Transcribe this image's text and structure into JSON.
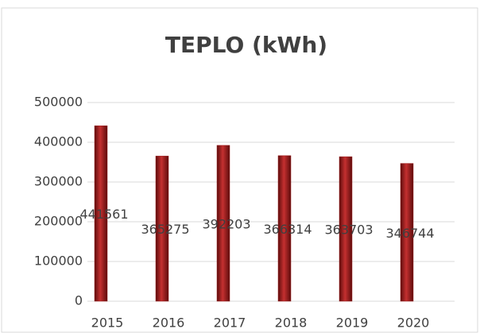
{
  "chart_data": {
    "type": "bar",
    "title": "TEPLO (kWh)",
    "categories": [
      "2015",
      "2016",
      "2017",
      "2018",
      "2019",
      "2020"
    ],
    "values": [
      441561,
      365275,
      392203,
      366314,
      363703,
      346744
    ],
    "color": "#9e1b1b",
    "ylim": [
      0,
      500000
    ],
    "yticks": [
      0,
      100000,
      200000,
      300000,
      400000,
      500000
    ],
    "grid": true
  }
}
